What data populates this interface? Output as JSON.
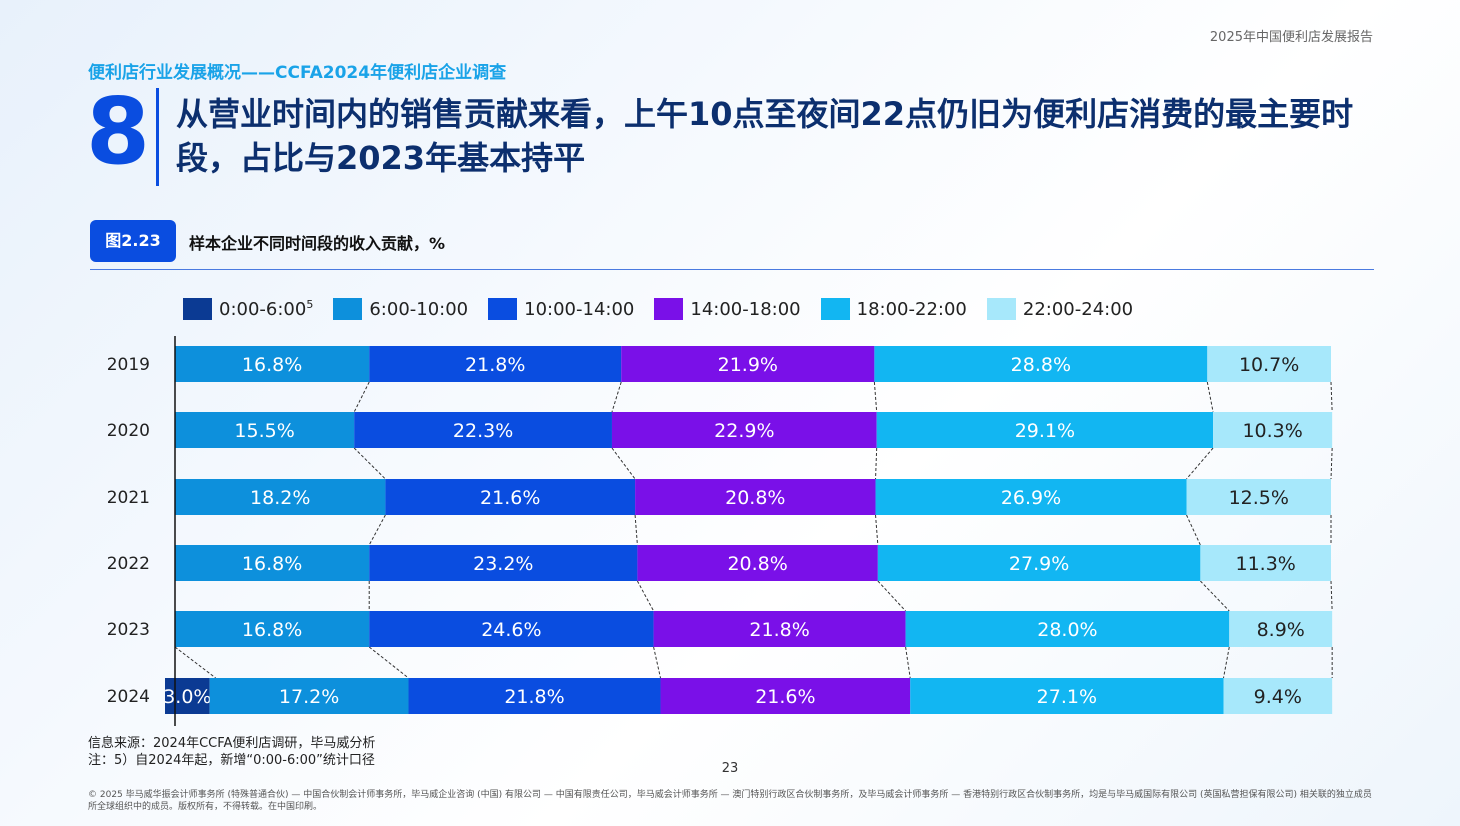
{
  "header": {
    "report_name": "2025年中国便利店发展报告",
    "section_label": "便利店行业发展概况——CCFA2024年便利店企业调查",
    "number": "8",
    "title": "从营业时间内的销售贡献来看，上午10点至夜间22点仍旧为便利店消费的最主要时段，占比与2023年基本持平"
  },
  "figure": {
    "badge": "图2.23",
    "title": "样本企业不同时间段的收入贡献，%"
  },
  "colors": {
    "s1": "#0b3a93",
    "s2": "#0d90dc",
    "s3": "#0a4de0",
    "s4": "#7a10e8",
    "s5": "#12b6f2",
    "s6": "#a7e8fb",
    "text_dark": "#222222",
    "text_light": "#ffffff"
  },
  "chart_data": {
    "type": "bar",
    "orientation": "horizontal",
    "stacked": true,
    "categories": [
      "2019",
      "2020",
      "2021",
      "2022",
      "2023",
      "2024"
    ],
    "series": [
      {
        "name": "0:00-6:00",
        "superscript": "5",
        "values": [
          null,
          null,
          null,
          null,
          null,
          3.0
        ],
        "labels": [
          "",
          "",
          "",
          "",
          "",
          "3.0%"
        ]
      },
      {
        "name": "6:00-10:00",
        "values": [
          16.8,
          15.5,
          18.2,
          16.8,
          16.8,
          17.2
        ],
        "labels": [
          "16.8%",
          "15.5%",
          "18.2%",
          "16.8%",
          "16.8%",
          "17.2%"
        ]
      },
      {
        "name": "10:00-14:00",
        "values": [
          21.8,
          22.3,
          21.6,
          23.2,
          24.6,
          21.8
        ],
        "labels": [
          "21.8%",
          "22.3%",
          "21.6%",
          "23.2%",
          "24.6%",
          "21.8%"
        ]
      },
      {
        "name": "14:00-18:00",
        "values": [
          21.9,
          22.9,
          20.8,
          20.8,
          21.8,
          21.6
        ],
        "labels": [
          "21.9%",
          "22.9%",
          "20.8%",
          "20.8%",
          "21.8%",
          "21.6%"
        ]
      },
      {
        "name": "18:00-22:00",
        "values": [
          28.8,
          29.1,
          26.9,
          27.9,
          28.0,
          27.1
        ],
        "labels": [
          "28.8%",
          "29.1%",
          "26.9%",
          "27.9%",
          "28.0%",
          "27.1%"
        ]
      },
      {
        "name": "22:00-24:00",
        "values": [
          10.7,
          10.3,
          12.5,
          11.3,
          8.9,
          9.4
        ],
        "labels": [
          "10.7%",
          "10.3%",
          "12.5%",
          "11.3%",
          "8.9%",
          "9.4%"
        ]
      }
    ],
    "xlim": [
      0,
      100
    ],
    "legend_position": "top",
    "connector_lines": true
  },
  "footer": {
    "source": "信息来源：2024年CCFA便利店调研，毕马威分析",
    "note": "注：5）自2024年起，新增“0:00-6:00”统计口径",
    "page": "23",
    "copyright": "© 2025 毕马威华振会计师事务所 (特殊普通合伙) — 中国合伙制会计师事务所，毕马威企业咨询 (中国) 有限公司 — 中国有限责任公司，毕马威会计师事务所 — 澳门特别行政区合伙制事务所，及毕马威会计师事务所 — 香港特别行政区合伙制事务所，均是与毕马威国际有限公司 (英国私营担保有限公司) 相关联的独立成员所全球组织中的成员。版权所有，不得转载。在中国印刷。"
  }
}
